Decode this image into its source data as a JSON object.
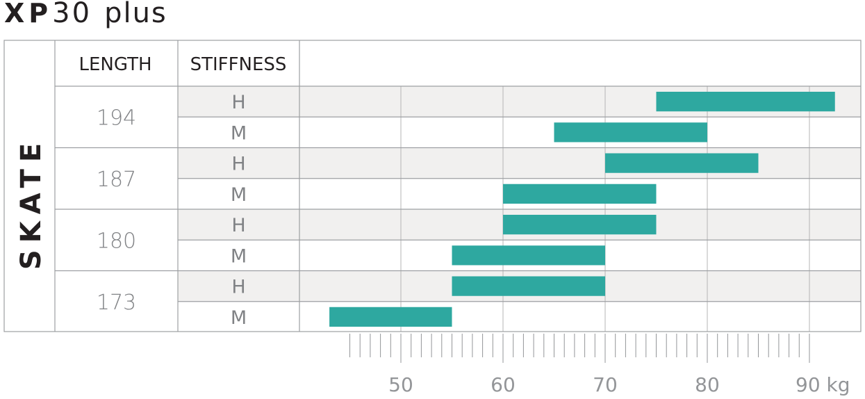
{
  "title": {
    "brand": "XP",
    "model": "30",
    "suffix": "plus"
  },
  "side_label": "SKATE",
  "headers": {
    "length": "LENGTH",
    "stiffness": "STIFFNESS"
  },
  "colors": {
    "bar": "#2ea8a0",
    "shaded_row": "#f1f0ef",
    "grid": "#b5b5b5"
  },
  "chart_data": {
    "type": "bar",
    "orientation": "horizontal-range",
    "unit": "kg",
    "x_ticks": [
      50,
      60,
      70,
      80,
      90
    ],
    "x_tick_labels": [
      "50",
      "60",
      "70",
      "80",
      "90 kg"
    ],
    "xlim": [
      40,
      95
    ],
    "groups": [
      {
        "length": "194",
        "rows": [
          {
            "stiffness": "H",
            "min": 75,
            "max": 92.5
          },
          {
            "stiffness": "M",
            "min": 65,
            "max": 80
          }
        ]
      },
      {
        "length": "187",
        "rows": [
          {
            "stiffness": "H",
            "min": 70,
            "max": 85
          },
          {
            "stiffness": "M",
            "min": 60,
            "max": 75
          }
        ]
      },
      {
        "length": "180",
        "rows": [
          {
            "stiffness": "H",
            "min": 60,
            "max": 75
          },
          {
            "stiffness": "M",
            "min": 55,
            "max": 70
          }
        ]
      },
      {
        "length": "173",
        "rows": [
          {
            "stiffness": "H",
            "min": 55,
            "max": 70
          },
          {
            "stiffness": "M",
            "min": 43,
            "max": 55
          }
        ]
      }
    ]
  }
}
